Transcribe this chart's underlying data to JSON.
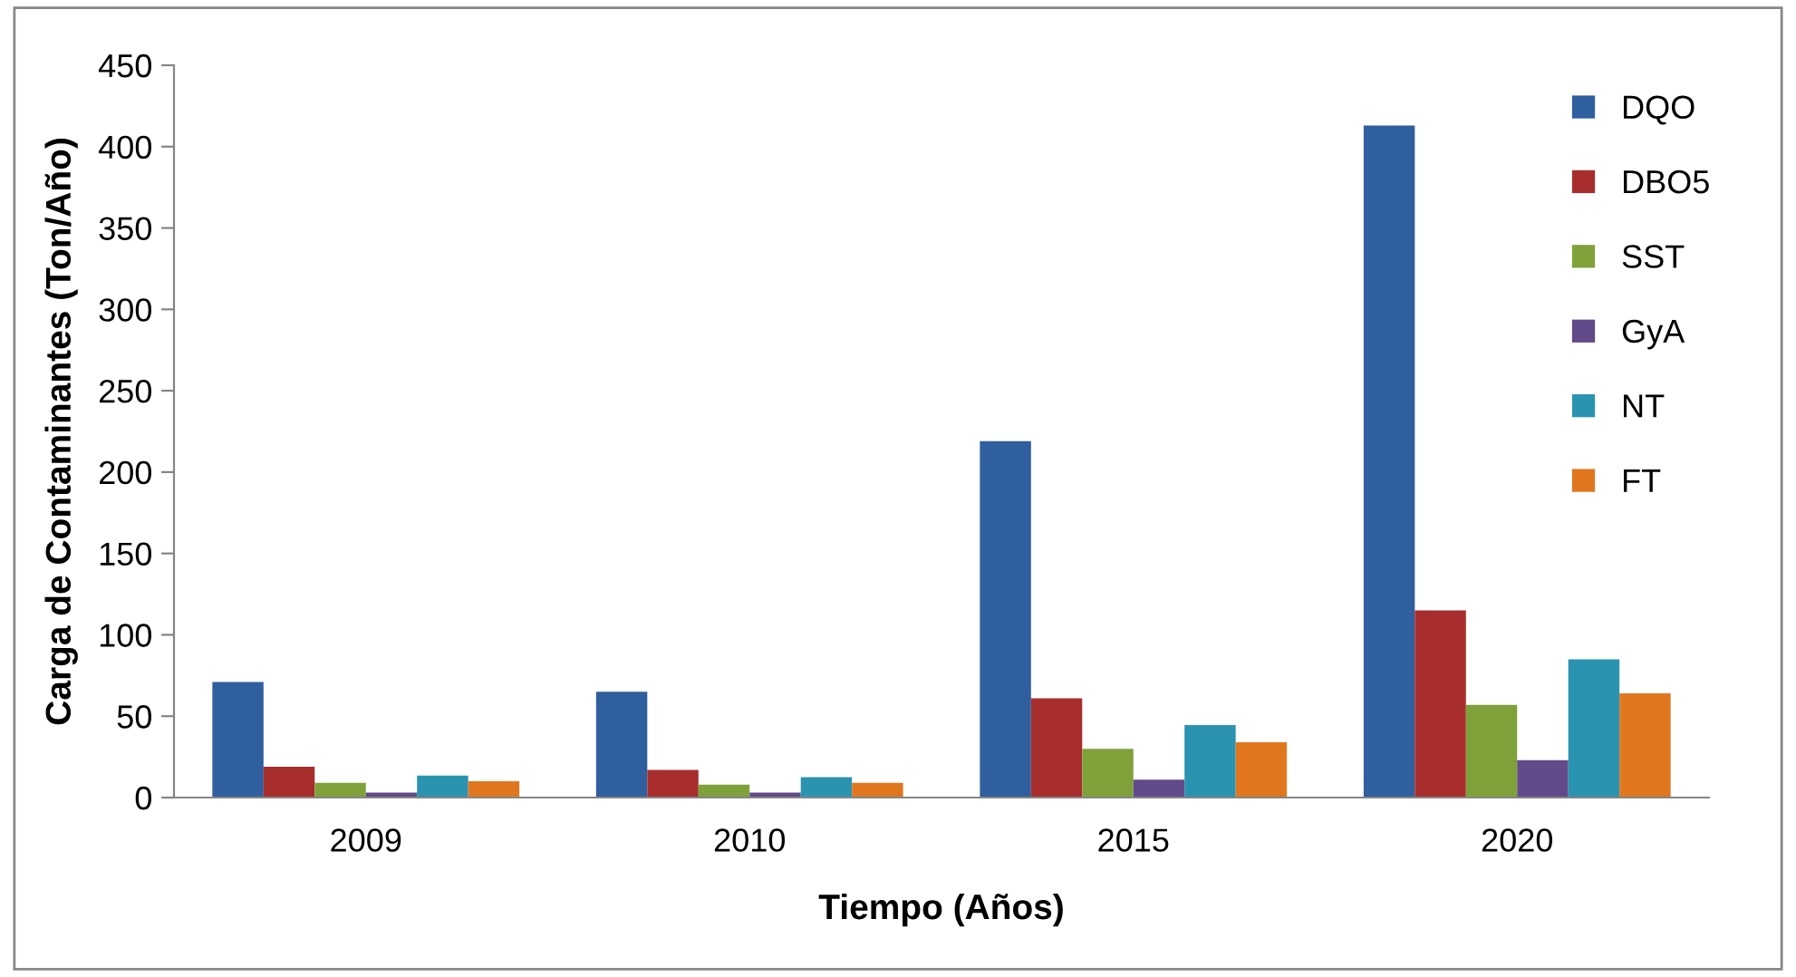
{
  "chart_data": {
    "type": "bar",
    "xlabel": "Tiempo (Años)",
    "ylabel": "Carga de Contaminantes (Ton/Año)",
    "categories": [
      "2009",
      "2010",
      "2015",
      "2020"
    ],
    "series": [
      {
        "name": "DQO",
        "color": "#2f5f9e",
        "values": [
          71,
          65,
          219,
          413
        ]
      },
      {
        "name": "DBO5",
        "color": "#a72e2d",
        "values": [
          19,
          17,
          61,
          115
        ]
      },
      {
        "name": "SST",
        "color": "#7fa13a",
        "values": [
          9,
          8,
          30,
          57
        ]
      },
      {
        "name": "GyA",
        "color": "#634a8a",
        "values": [
          3,
          3,
          11,
          23
        ]
      },
      {
        "name": "NT",
        "color": "#2a93b0",
        "values": [
          13.5,
          12.5,
          44.5,
          85
        ]
      },
      {
        "name": "FT",
        "color": "#e0771f",
        "values": [
          10,
          9,
          34,
          64
        ]
      }
    ],
    "ylim": [
      0,
      450
    ],
    "yticks": [
      0,
      50,
      100,
      150,
      200,
      250,
      300,
      350,
      400,
      450
    ],
    "grid": false,
    "legend": "top right"
  }
}
